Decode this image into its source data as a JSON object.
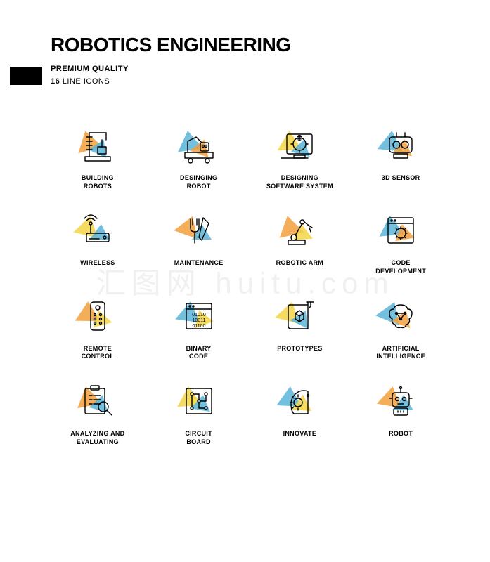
{
  "header": {
    "title": "ROBOTICS ENGINEERING",
    "subtitle": "PREMIUM QUALITY",
    "count": "16",
    "count_suffix": "LINE ICONS"
  },
  "colors": {
    "orange": "#f2a03d",
    "blue": "#5bb4d8",
    "yellow": "#f5d547",
    "stroke": "#000000",
    "background": "#ffffff"
  },
  "icons": [
    {
      "name": "building-robots-icon",
      "label": "BUILDING\nROBOTS",
      "tri_colors": [
        "#f2a03d",
        "#5bb4d8"
      ]
    },
    {
      "name": "designing-robot-icon",
      "label": "DESINGING\nROBOT",
      "tri_colors": [
        "#5bb4d8",
        "#f2a03d"
      ]
    },
    {
      "name": "designing-software-icon",
      "label": "DESIGNING\nSOFTWARE SYSTEM",
      "tri_colors": [
        "#f5d547",
        "#5bb4d8"
      ]
    },
    {
      "name": "3d-sensor-icon",
      "label": "3D SENSOR",
      "tri_colors": [
        "#5bb4d8",
        "#f2a03d"
      ]
    },
    {
      "name": "wireless-icon",
      "label": "WIRELESS",
      "tri_colors": [
        "#f5d547",
        "#5bb4d8"
      ]
    },
    {
      "name": "maintenance-icon",
      "label": "MAINTENANCE",
      "tri_colors": [
        "#f2a03d",
        "#5bb4d8"
      ]
    },
    {
      "name": "robotic-arm-icon",
      "label": "ROBOTIC ARM",
      "tri_colors": [
        "#f2a03d",
        "#f5d547"
      ]
    },
    {
      "name": "code-development-icon",
      "label": "CODE\nDEVELOPMENT",
      "tri_colors": [
        "#5bb4d8",
        "#f2a03d"
      ]
    },
    {
      "name": "remote-control-icon",
      "label": "REMOTE\nCONTROL",
      "tri_colors": [
        "#f2a03d",
        "#f5d547"
      ]
    },
    {
      "name": "binary-code-icon",
      "label": "BINARY\nCODE",
      "tri_colors": [
        "#5bb4d8",
        "#f5d547"
      ]
    },
    {
      "name": "prototypes-icon",
      "label": "PROTOTYPES",
      "tri_colors": [
        "#f5d547",
        "#5bb4d8"
      ]
    },
    {
      "name": "ai-icon",
      "label": "ARTIFICIAL\nINTELLIGENCE",
      "tri_colors": [
        "#5bb4d8",
        "#f2a03d"
      ]
    },
    {
      "name": "analyzing-icon",
      "label": "ANALYZING AND\nEVALUATING",
      "tri_colors": [
        "#f2a03d",
        "#5bb4d8"
      ]
    },
    {
      "name": "circuit-board-icon",
      "label": "CIRCUIT\nBOARD",
      "tri_colors": [
        "#f5d547",
        "#5bb4d8"
      ]
    },
    {
      "name": "innovate-icon",
      "label": "INNOVATE",
      "tri_colors": [
        "#5bb4d8",
        "#f5d547"
      ]
    },
    {
      "name": "robot-icon",
      "label": "ROBOT",
      "tri_colors": [
        "#f2a03d",
        "#5bb4d8"
      ]
    }
  ],
  "watermark": "汇图网 huitu.com",
  "layout": {
    "cols": 4,
    "rows": 4,
    "icon_size": 52,
    "label_fontsize": 9
  }
}
